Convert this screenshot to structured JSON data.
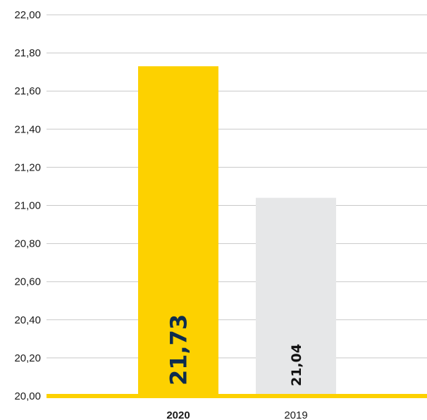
{
  "chart_data": {
    "type": "bar",
    "title": "",
    "xlabel": "",
    "ylabel": "",
    "categories": [
      "2020",
      "2019"
    ],
    "values": [
      21.73,
      21.04
    ],
    "data_labels": [
      "21,73",
      "21,04"
    ],
    "ylim": [
      20.0,
      22.0
    ],
    "yticks": [
      20.0,
      20.2,
      20.4,
      20.6,
      20.8,
      21.0,
      21.2,
      21.4,
      21.6,
      21.8,
      22.0
    ],
    "ytick_labels": [
      "20,00",
      "20,20",
      "20,40",
      "20,60",
      "20,80",
      "21,00",
      "21,20",
      "21,40",
      "21,60",
      "21,80",
      "22,00"
    ],
    "grid": true,
    "legend": "none",
    "colors": {
      "highlight_bar": "#FDD100",
      "other_bar": "#E6E7E8",
      "baseline": "#FDD100",
      "gridline": "#C8C8C8",
      "highlight_label": "#0E2C4F",
      "other_label": "#111111"
    },
    "highlight_category": "2020"
  }
}
